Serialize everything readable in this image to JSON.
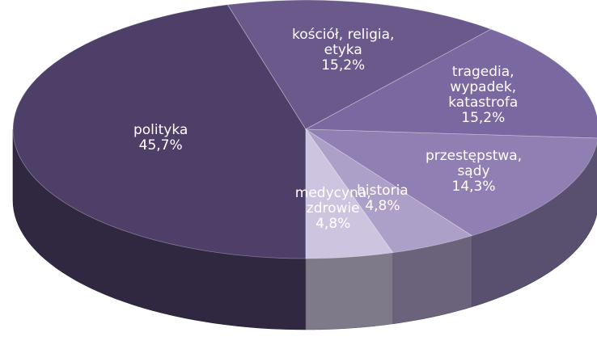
{
  "chart_data": {
    "type": "pie3d",
    "categories": [
      "polityka",
      "kościół, religia, etyka",
      "tragedia, wypadek, katastrofa",
      "przestępstwa, sądy",
      "historia",
      "medycyna, zdrowie"
    ],
    "values": [
      45.7,
      15.2,
      15.2,
      14.3,
      4.8,
      4.8
    ],
    "value_labels": [
      "45,7%",
      "15,2%",
      "15,2%",
      "14,3%",
      "4,8%",
      "4,8%"
    ],
    "colors": [
      "#4e3f68",
      "#6a5a8c",
      "#7a69a1",
      "#8f7fb2",
      "#ada0c8",
      "#cdc4df"
    ]
  }
}
